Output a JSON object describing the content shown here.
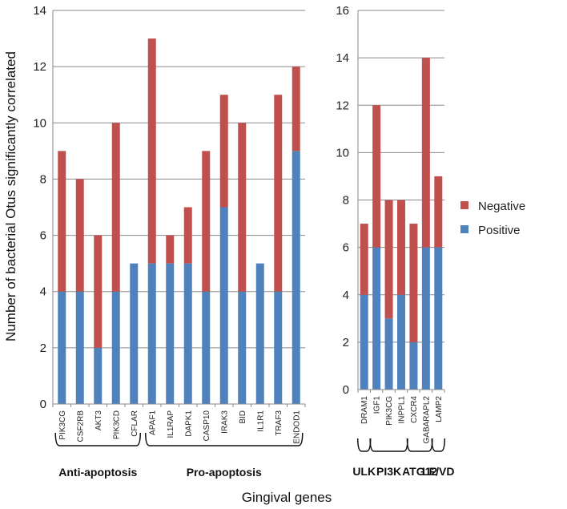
{
  "chart_data": {
    "type": "bar",
    "stacked": true,
    "ylabel": "Number of bacterial Otus significantly correlated",
    "xlabel": "Gingival genes",
    "legend": {
      "placement": "right",
      "entries": [
        "Negative",
        "Positive"
      ]
    },
    "colors": {
      "Positive": "#4f81bd",
      "Negative": "#c0504d"
    },
    "grid": true,
    "panels": [
      {
        "ylim": [
          0,
          14
        ],
        "yticks": [
          0,
          2,
          4,
          6,
          8,
          10,
          12,
          14
        ],
        "categories": [
          "PIK3CG",
          "CSF2RB",
          "AKT3",
          "PIK3CD",
          "CFLAR",
          "APAF1",
          "IL1RAP",
          "DAPK1",
          "CASP10",
          "IRAK3",
          "BID",
          "IL1R1",
          "TRAF3",
          "ENDOD1"
        ],
        "series": [
          {
            "name": "Positive",
            "values": [
              4,
              4,
              2,
              4,
              5,
              5,
              5,
              5,
              4,
              7,
              4,
              5,
              4,
              9
            ]
          },
          {
            "name": "Negative",
            "values": [
              5,
              4,
              4,
              6,
              0,
              8,
              1,
              2,
              5,
              4,
              6,
              0,
              7,
              3
            ]
          }
        ],
        "groups": [
          {
            "label": "Anti-apoptosis",
            "from": 0,
            "to": 4
          },
          {
            "label": "Pro-apoptosis",
            "from": 5,
            "to": 13
          }
        ]
      },
      {
        "ylim": [
          0,
          16
        ],
        "yticks": [
          0,
          2,
          4,
          6,
          8,
          10,
          12,
          14,
          16
        ],
        "categories": [
          "DRAM1",
          "IGF1",
          "PIK3CG",
          "INPPL1",
          "CXCR4",
          "GABARAPL2",
          "LAMP2"
        ],
        "series": [
          {
            "name": "Positive",
            "values": [
              4,
              6,
              3,
              4,
              2,
              6,
              6
            ]
          },
          {
            "name": "Negative",
            "values": [
              3,
              6,
              5,
              4,
              5,
              8,
              3
            ]
          }
        ],
        "groups": [
          {
            "label": "ULK",
            "from": 0,
            "to": 0
          },
          {
            "label": "PI3K",
            "from": 1,
            "to": 3
          },
          {
            "label": "ATG12",
            "from": 4,
            "to": 5
          },
          {
            "label": "LF/VD",
            "from": 6,
            "to": 6
          }
        ]
      }
    ]
  }
}
